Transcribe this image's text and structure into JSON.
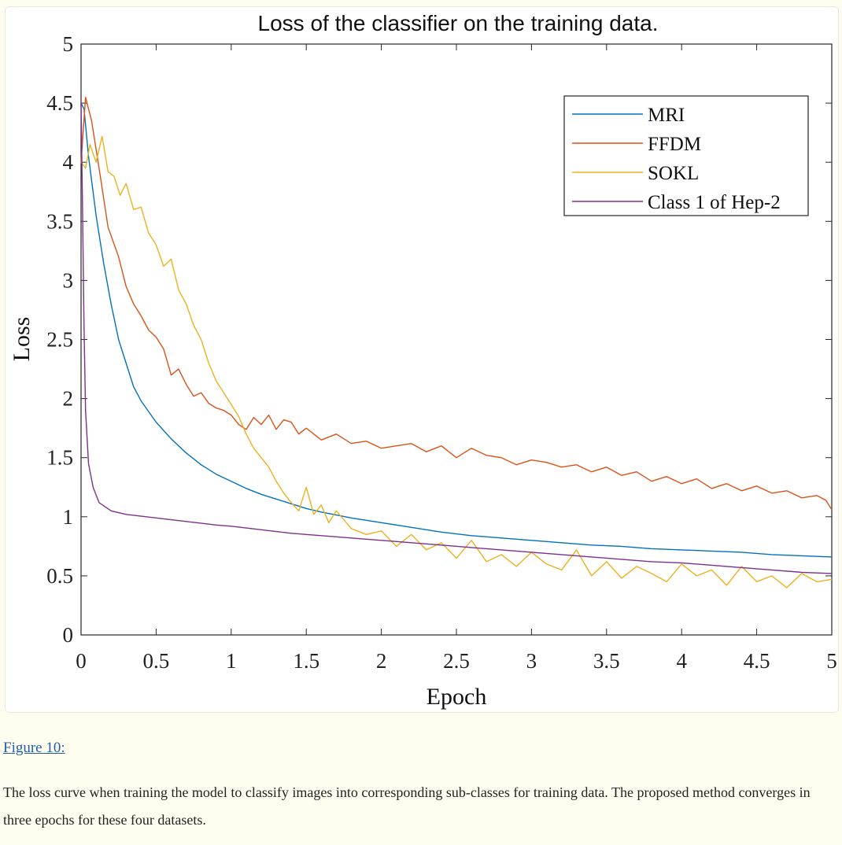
{
  "figure": {
    "label": "Figure 10:",
    "caption": "The loss curve when training the model to classify images into corresponding sub-classes for training data. The proposed method converges in three epochs for these four datasets."
  },
  "chart_data": {
    "type": "line",
    "title": "Loss of the classifier on the training data.",
    "xlabel": "Epoch",
    "ylabel": "Loss",
    "xlim": [
      0,
      5
    ],
    "ylim": [
      0,
      5
    ],
    "xticks": [
      0,
      0.5,
      1,
      1.5,
      2,
      2.5,
      3,
      3.5,
      4,
      4.5,
      5
    ],
    "xtick_labels": [
      "0",
      "0.5",
      "1",
      "1.5",
      "2",
      "2.5",
      "3",
      "3.5",
      "4",
      "4.5",
      "5"
    ],
    "yticks": [
      0,
      0.5,
      1,
      1.5,
      2,
      2.5,
      3,
      3.5,
      4,
      4.5,
      5
    ],
    "ytick_labels": [
      "0",
      "0.5",
      "1",
      "1.5",
      "2",
      "2.5",
      "3",
      "3.5",
      "4",
      "4.5",
      "5"
    ],
    "grid": false,
    "legend_position": "top-right",
    "series": [
      {
        "name": "MRI",
        "color": "#0072bd",
        "x": [
          0,
          0.02,
          0.05,
          0.1,
          0.15,
          0.2,
          0.25,
          0.3,
          0.35,
          0.4,
          0.5,
          0.6,
          0.7,
          0.8,
          0.9,
          1.0,
          1.1,
          1.2,
          1.3,
          1.4,
          1.5,
          1.6,
          1.8,
          2.0,
          2.2,
          2.4,
          2.6,
          2.8,
          3.0,
          3.2,
          3.4,
          3.6,
          3.8,
          4.0,
          4.2,
          4.4,
          4.6,
          4.8,
          5.0
        ],
        "y": [
          4.5,
          4.45,
          4.05,
          3.55,
          3.15,
          2.8,
          2.5,
          2.3,
          2.1,
          1.98,
          1.8,
          1.66,
          1.54,
          1.44,
          1.36,
          1.3,
          1.24,
          1.19,
          1.15,
          1.11,
          1.07,
          1.04,
          0.99,
          0.95,
          0.91,
          0.87,
          0.84,
          0.82,
          0.8,
          0.78,
          0.76,
          0.75,
          0.73,
          0.72,
          0.71,
          0.7,
          0.68,
          0.67,
          0.66
        ]
      },
      {
        "name": "FFDM",
        "color": "#d95319",
        "x": [
          0,
          0.03,
          0.07,
          0.12,
          0.18,
          0.25,
          0.3,
          0.35,
          0.4,
          0.45,
          0.5,
          0.55,
          0.6,
          0.65,
          0.7,
          0.75,
          0.8,
          0.85,
          0.9,
          0.95,
          1.0,
          1.05,
          1.1,
          1.15,
          1.2,
          1.25,
          1.3,
          1.35,
          1.4,
          1.45,
          1.5,
          1.6,
          1.7,
          1.8,
          1.9,
          2.0,
          2.1,
          2.2,
          2.3,
          2.4,
          2.5,
          2.6,
          2.7,
          2.8,
          2.9,
          3.0,
          3.1,
          3.2,
          3.3,
          3.4,
          3.5,
          3.6,
          3.7,
          3.8,
          3.9,
          4.0,
          4.1,
          4.2,
          4.3,
          4.4,
          4.5,
          4.6,
          4.7,
          4.8,
          4.9,
          4.96,
          5.0
        ],
        "y": [
          4.0,
          4.55,
          4.35,
          3.95,
          3.45,
          3.2,
          2.95,
          2.8,
          2.7,
          2.58,
          2.52,
          2.42,
          2.2,
          2.25,
          2.12,
          2.02,
          2.05,
          1.96,
          1.92,
          1.9,
          1.86,
          1.78,
          1.74,
          1.84,
          1.78,
          1.86,
          1.74,
          1.82,
          1.8,
          1.7,
          1.75,
          1.65,
          1.7,
          1.62,
          1.64,
          1.58,
          1.6,
          1.62,
          1.55,
          1.6,
          1.5,
          1.58,
          1.52,
          1.5,
          1.44,
          1.48,
          1.46,
          1.42,
          1.44,
          1.38,
          1.42,
          1.35,
          1.38,
          1.3,
          1.34,
          1.28,
          1.32,
          1.24,
          1.28,
          1.22,
          1.26,
          1.2,
          1.22,
          1.16,
          1.18,
          1.14,
          1.06
        ]
      },
      {
        "name": "SOKL",
        "color": "#edb120",
        "x": [
          0,
          0.03,
          0.06,
          0.1,
          0.14,
          0.18,
          0.22,
          0.26,
          0.3,
          0.35,
          0.4,
          0.45,
          0.5,
          0.55,
          0.6,
          0.65,
          0.7,
          0.75,
          0.8,
          0.85,
          0.9,
          0.95,
          1.0,
          1.05,
          1.1,
          1.15,
          1.2,
          1.25,
          1.3,
          1.35,
          1.4,
          1.45,
          1.5,
          1.55,
          1.6,
          1.65,
          1.7,
          1.8,
          1.9,
          2.0,
          2.1,
          2.2,
          2.3,
          2.4,
          2.5,
          2.6,
          2.7,
          2.8,
          2.9,
          3.0,
          3.1,
          3.2,
          3.3,
          3.4,
          3.5,
          3.6,
          3.7,
          3.8,
          3.9,
          4.0,
          4.1,
          4.2,
          4.3,
          4.4,
          4.5,
          4.6,
          4.7,
          4.8,
          4.9,
          5.0
        ],
        "y": [
          4.0,
          3.95,
          4.15,
          4.0,
          4.22,
          3.92,
          3.88,
          3.72,
          3.82,
          3.6,
          3.62,
          3.4,
          3.3,
          3.12,
          3.18,
          2.92,
          2.8,
          2.62,
          2.5,
          2.3,
          2.15,
          2.05,
          1.95,
          1.85,
          1.7,
          1.58,
          1.5,
          1.42,
          1.3,
          1.2,
          1.12,
          1.05,
          1.25,
          1.02,
          1.1,
          0.95,
          1.05,
          0.9,
          0.85,
          0.88,
          0.75,
          0.85,
          0.72,
          0.78,
          0.65,
          0.8,
          0.62,
          0.68,
          0.58,
          0.7,
          0.6,
          0.55,
          0.72,
          0.5,
          0.62,
          0.48,
          0.58,
          0.52,
          0.45,
          0.6,
          0.5,
          0.55,
          0.42,
          0.58,
          0.45,
          0.5,
          0.4,
          0.52,
          0.45,
          0.47
        ]
      },
      {
        "name": "Class 1 of Hep-2",
        "color": "#7e2f8e",
        "x": [
          0,
          0.01,
          0.02,
          0.03,
          0.05,
          0.08,
          0.12,
          0.2,
          0.3,
          0.5,
          0.7,
          0.9,
          1.0,
          1.2,
          1.4,
          1.6,
          1.8,
          2.0,
          2.2,
          2.4,
          2.6,
          2.8,
          3.0,
          3.2,
          3.4,
          3.6,
          3.8,
          4.0,
          4.2,
          4.4,
          4.6,
          4.8,
          5.0
        ],
        "y": [
          4.5,
          3.6,
          2.6,
          1.9,
          1.45,
          1.25,
          1.12,
          1.05,
          1.02,
          0.99,
          0.96,
          0.93,
          0.92,
          0.89,
          0.86,
          0.84,
          0.82,
          0.8,
          0.78,
          0.76,
          0.74,
          0.72,
          0.7,
          0.68,
          0.66,
          0.64,
          0.62,
          0.61,
          0.59,
          0.57,
          0.55,
          0.53,
          0.52
        ]
      }
    ]
  }
}
